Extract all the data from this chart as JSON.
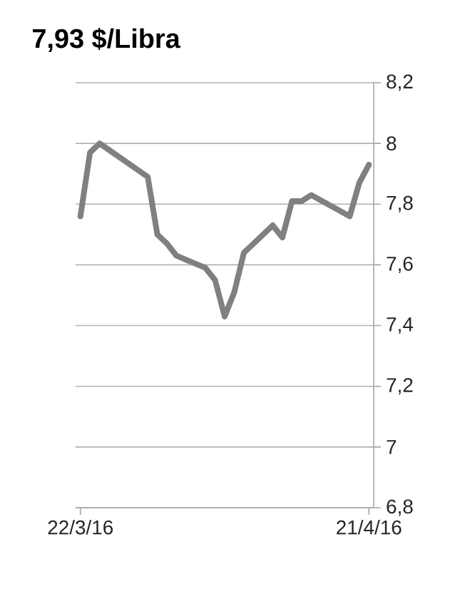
{
  "chart_data": {
    "type": "line",
    "title": "7,93 $/Libra",
    "x": [
      "2016-03-22",
      "2016-03-23",
      "2016-03-24",
      "2016-03-29",
      "2016-03-30",
      "2016-03-31",
      "2016-04-01",
      "2016-04-04",
      "2016-04-05",
      "2016-04-06",
      "2016-04-07",
      "2016-04-08",
      "2016-04-11",
      "2016-04-12",
      "2016-04-13",
      "2016-04-14",
      "2016-04-15",
      "2016-04-19",
      "2016-04-20",
      "2016-04-21"
    ],
    "series": [
      {
        "color": "#808080",
        "values": [
          7.76,
          7.97,
          8.0,
          7.89,
          7.7,
          7.67,
          7.63,
          7.59,
          7.55,
          7.43,
          7.51,
          7.64,
          7.73,
          7.69,
          7.81,
          7.81,
          7.83,
          7.76,
          7.87,
          7.93
        ]
      }
    ],
    "xlim": [
      "2016-03-21T12:00",
      "2016-04-21T12:00"
    ],
    "xticks": [
      {
        "value": "2016-03-22",
        "label": "22/3/16"
      },
      {
        "value": "2016-04-21",
        "label": "21/4/16"
      }
    ],
    "ylim": [
      6.8,
      8.2
    ],
    "yticks": [
      {
        "value": 6.8,
        "label": "6,8"
      },
      {
        "value": 7,
        "label": "7"
      },
      {
        "value": 7.2,
        "label": "7,2"
      },
      {
        "value": 7.4,
        "label": "7,4"
      },
      {
        "value": 7.6,
        "label": "7,6"
      },
      {
        "value": 7.8,
        "label": "7,8"
      },
      {
        "value": 8,
        "label": "8"
      },
      {
        "value": 8.2,
        "label": "8,2"
      }
    ],
    "grid": "y",
    "marker": "none",
    "line_style": "solid"
  }
}
